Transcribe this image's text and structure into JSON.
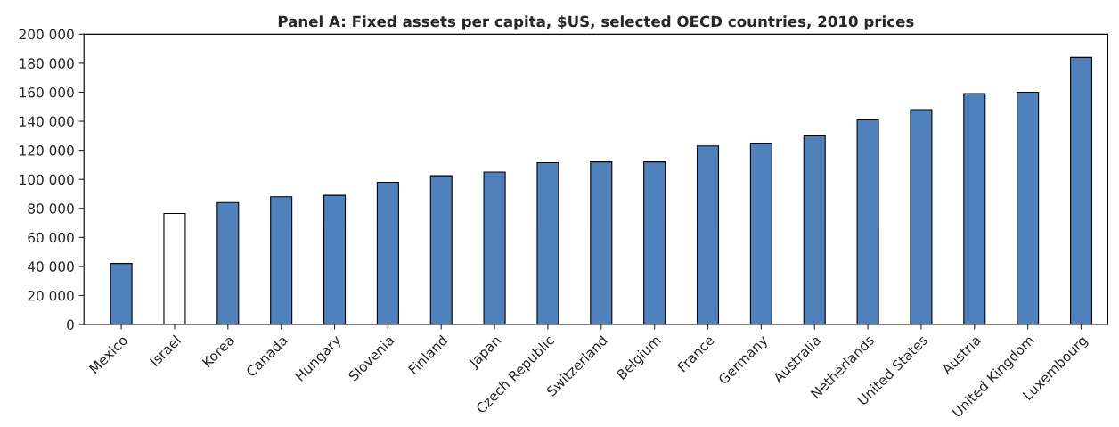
{
  "chart_data": {
    "type": "bar",
    "title": "Panel A: Fixed assets per capita, $US, selected OECD countries, 2010 prices",
    "categories": [
      "Mexico",
      "Israel",
      "Korea",
      "Canada",
      "Hungary",
      "Slovenia",
      "Finland",
      "Japan",
      "Czech Republic",
      "Switzerland",
      "Belgium",
      "France",
      "Germany",
      "Australia",
      "Netherlands",
      "United States",
      "Austria",
      "United Kingdom",
      "Luxembourg"
    ],
    "values": [
      42000,
      76500,
      84000,
      88000,
      89000,
      98000,
      102500,
      105000,
      111500,
      112000,
      112000,
      123000,
      125000,
      130000,
      141000,
      148000,
      159000,
      160000,
      184000
    ],
    "colors": [
      "#4f81bd",
      "#ffffff",
      "#4f81bd",
      "#4f81bd",
      "#4f81bd",
      "#4f81bd",
      "#4f81bd",
      "#4f81bd",
      "#4f81bd",
      "#4f81bd",
      "#4f81bd",
      "#4f81bd",
      "#4f81bd",
      "#4f81bd",
      "#4f81bd",
      "#4f81bd",
      "#4f81bd",
      "#4f81bd",
      "#4f81bd"
    ],
    "ylim": [
      0,
      200000
    ],
    "yticks": [
      {
        "value": 0,
        "label": "0"
      },
      {
        "value": 20000,
        "label": "20 000"
      },
      {
        "value": 40000,
        "label": "40 000"
      },
      {
        "value": 60000,
        "label": "60 000"
      },
      {
        "value": 80000,
        "label": "80 000"
      },
      {
        "value": 100000,
        "label": "100 000"
      },
      {
        "value": 120000,
        "label": "120 000"
      },
      {
        "value": 140000,
        "label": "140 000"
      },
      {
        "value": 160000,
        "label": "160 000"
      },
      {
        "value": 180000,
        "label": "180 000"
      },
      {
        "value": 200000,
        "label": "200 000"
      }
    ],
    "grid": false,
    "legend": false
  }
}
